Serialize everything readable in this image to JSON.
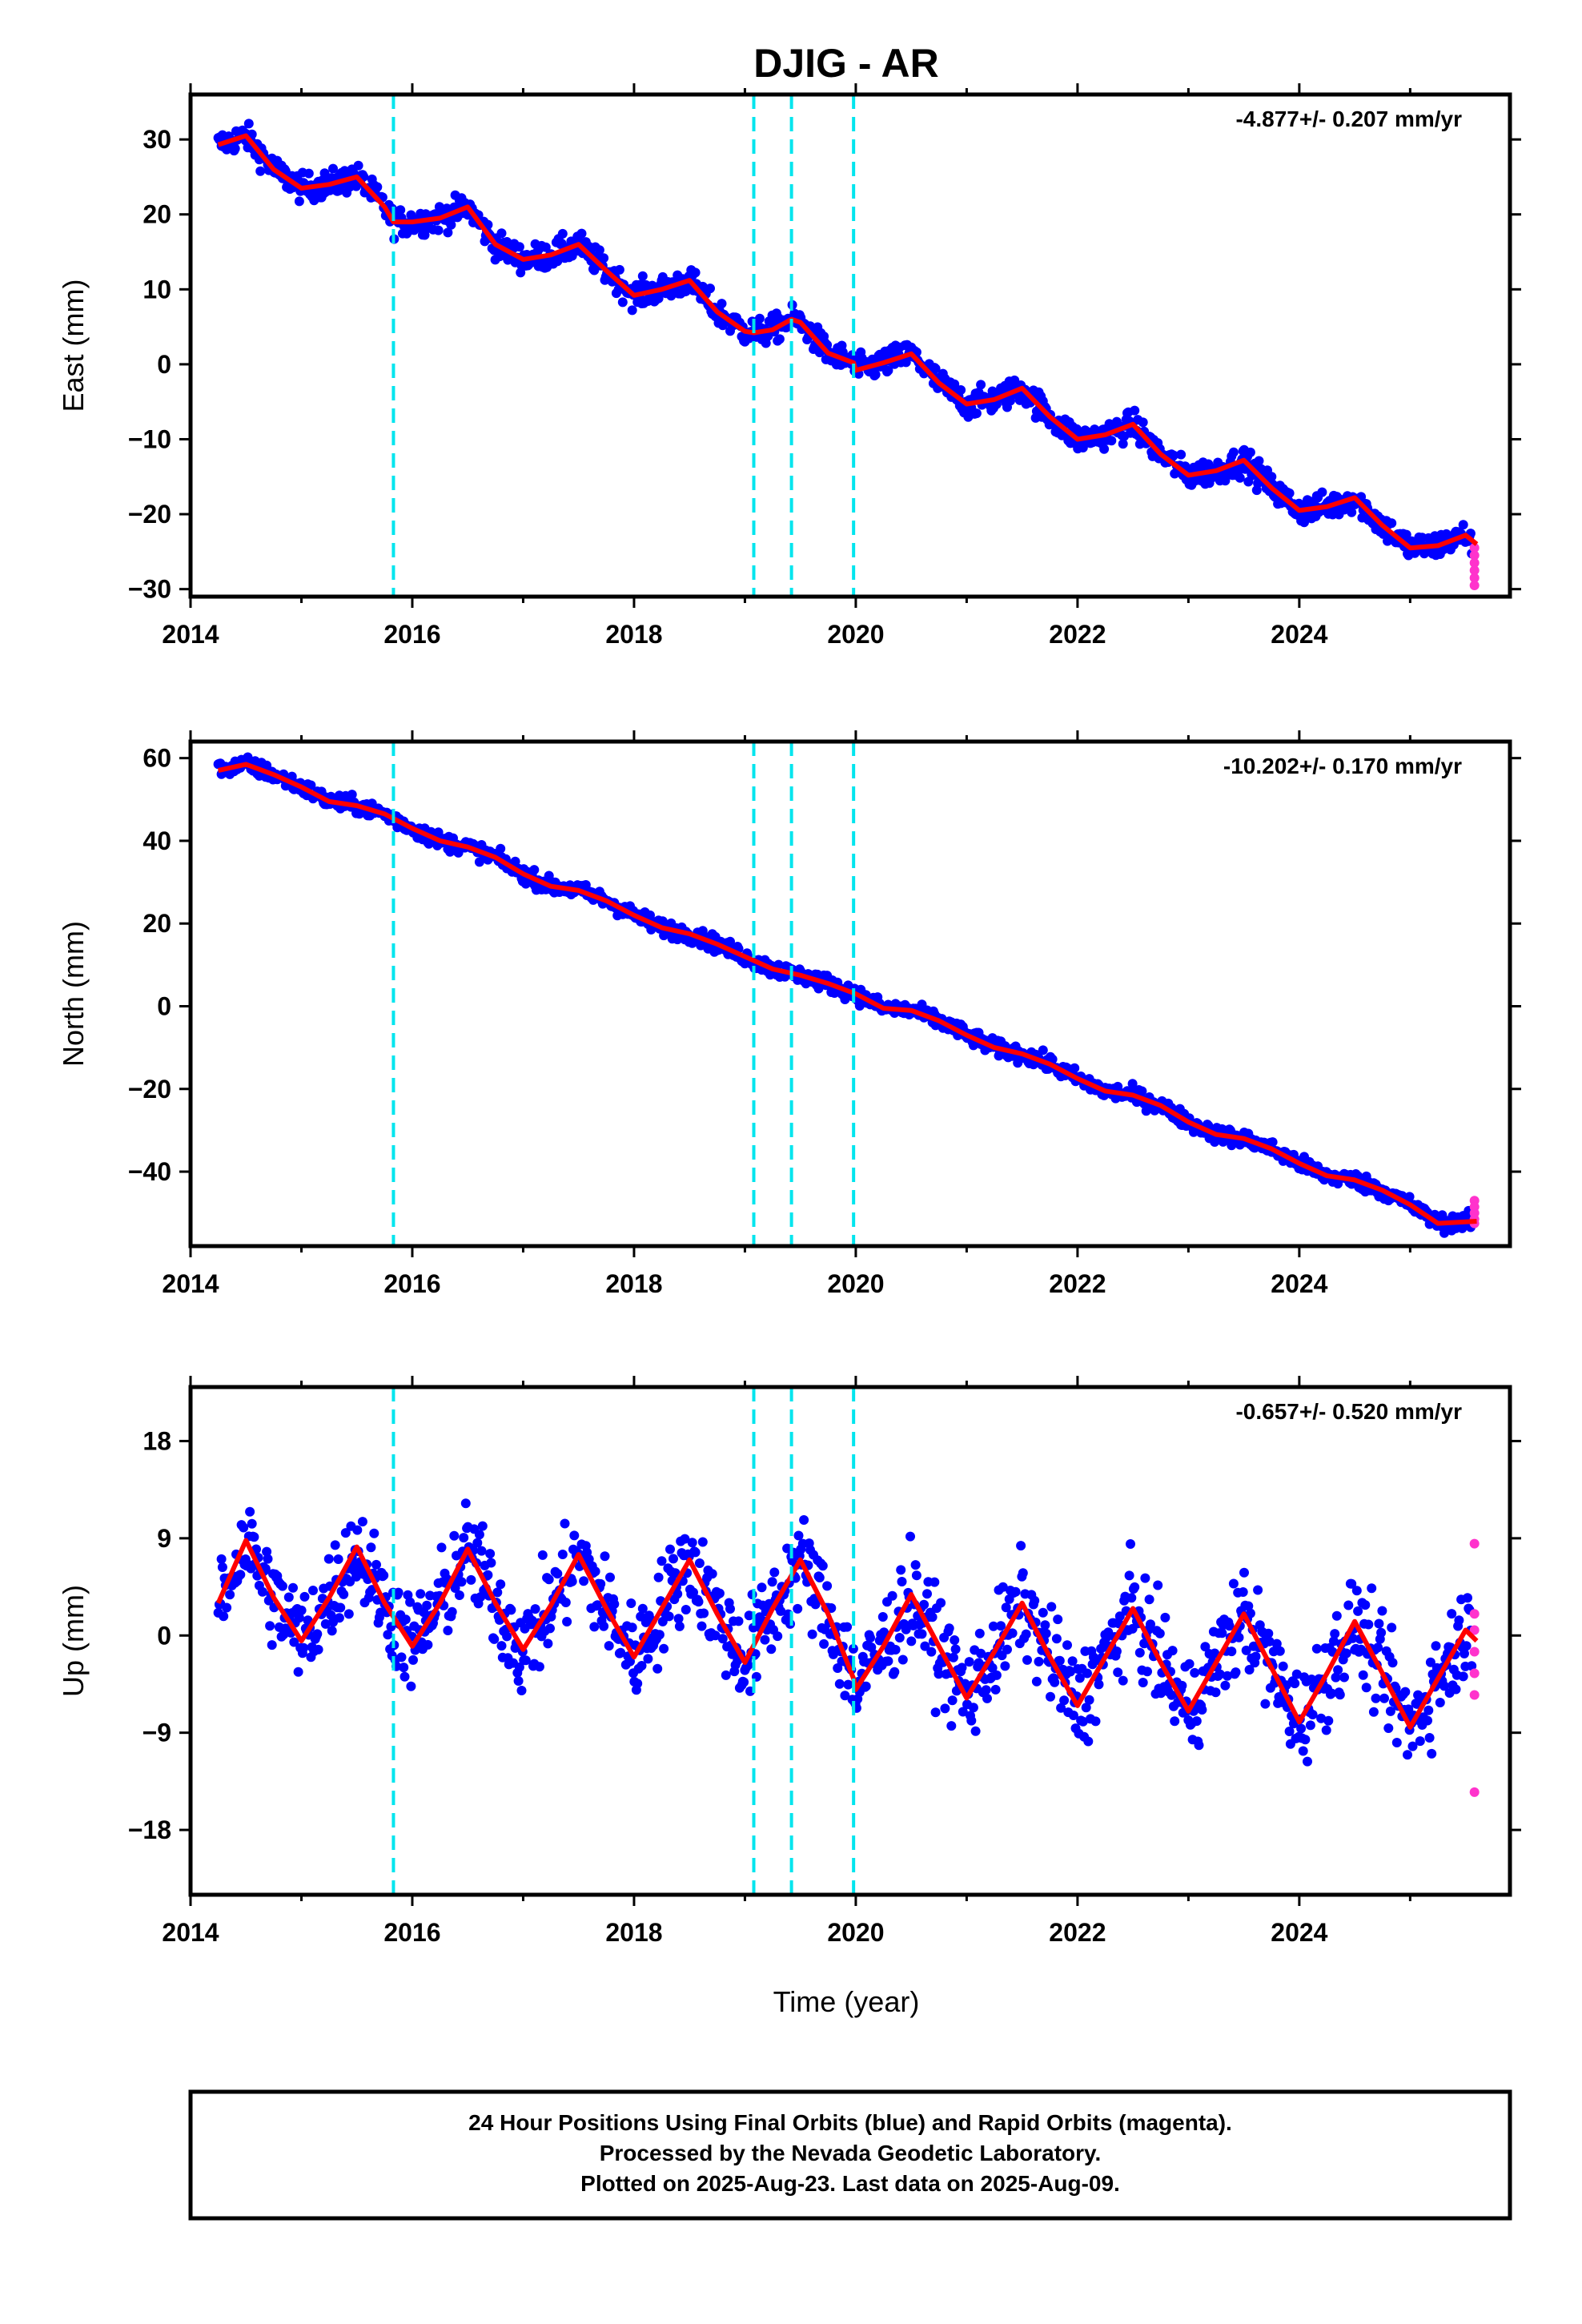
{
  "title": "DJIG - AR",
  "x_axis_label": "Time (year)",
  "footer": {
    "line1": "24 Hour Positions Using Final Orbits (blue) and Rapid Orbits (magenta).",
    "line2": "Processed by the Nevada Geodetic Laboratory.",
    "line3": "Plotted on 2025-Aug-23. Last data on 2025-Aug-09."
  },
  "colors": {
    "final": "#0000ff",
    "rapid": "#ff33cc",
    "model": "#ff0000",
    "events": "#00e5ee",
    "frame": "#000000"
  },
  "chart_data": [
    {
      "type": "scatter",
      "component": "east",
      "ylabel": "East (mm)",
      "rate_text": "-4.877+/- 0.207 mm/yr",
      "xlim": [
        2014,
        2025.9
      ],
      "ylim": [
        -31,
        36
      ],
      "xticks": [
        2014,
        2016,
        2018,
        2020,
        2022,
        2024
      ],
      "yticks": [
        -30,
        -20,
        -10,
        0,
        10,
        20,
        30
      ],
      "events": [
        2015.83,
        2019.08,
        2019.42,
        2019.98
      ],
      "model": {
        "x": [
          2014.25,
          2014.5,
          2014.75,
          2015.0,
          2015.25,
          2015.5,
          2015.75,
          2015.83,
          2016.0,
          2016.25,
          2016.5,
          2016.75,
          2017.0,
          2017.25,
          2017.5,
          2017.75,
          2018.0,
          2018.25,
          2018.5,
          2018.75,
          2019.0,
          2019.08,
          2019.25,
          2019.42,
          2019.5,
          2019.75,
          2019.98,
          2020.0,
          2020.25,
          2020.5,
          2020.75,
          2021.0,
          2021.25,
          2021.5,
          2021.75,
          2022.0,
          2022.25,
          2022.5,
          2022.75,
          2023.0,
          2023.25,
          2023.5,
          2023.75,
          2024.0,
          2024.25,
          2024.5,
          2024.75,
          2025.0,
          2025.25,
          2025.5,
          2025.6
        ],
        "y": [
          29.3,
          30.5,
          26.0,
          23.5,
          24.0,
          25.0,
          21.0,
          19.0,
          19.0,
          19.5,
          21.0,
          16.0,
          14.0,
          14.6,
          16.0,
          12.5,
          9.2,
          10.0,
          11.2,
          7.0,
          4.4,
          4.2,
          4.6,
          6.0,
          5.6,
          1.5,
          0.2,
          -0.8,
          0.2,
          1.4,
          -2.5,
          -5.3,
          -4.7,
          -3.2,
          -7.0,
          -10.0,
          -9.4,
          -8.0,
          -12.0,
          -14.8,
          -14.2,
          -12.8,
          -16.5,
          -19.5,
          -19.0,
          -17.8,
          -21.5,
          -24.5,
          -24.2,
          -22.8,
          -24.0
        ]
      },
      "scatter_noise": 1.3,
      "rapid": {
        "x": 2025.58,
        "y": [
          -24.5,
          -25.5,
          -26.5,
          -27.5,
          -28.5,
          -29.5
        ]
      }
    },
    {
      "type": "scatter",
      "component": "north",
      "ylabel": "North (mm)",
      "rate_text": "-10.202+/- 0.170 mm/yr",
      "xlim": [
        2014,
        2025.9
      ],
      "ylim": [
        -58,
        64
      ],
      "xticks": [
        2014,
        2016,
        2018,
        2020,
        2022,
        2024
      ],
      "yticks": [
        -40,
        -20,
        0,
        20,
        40,
        60
      ],
      "events": [
        2015.83,
        2019.08,
        2019.42,
        2019.98
      ],
      "model": {
        "x": [
          2014.25,
          2014.5,
          2014.75,
          2015.0,
          2015.25,
          2015.5,
          2015.75,
          2016.0,
          2016.25,
          2016.5,
          2016.75,
          2017.0,
          2017.25,
          2017.5,
          2017.75,
          2018.0,
          2018.25,
          2018.5,
          2018.75,
          2019.0,
          2019.25,
          2019.5,
          2019.75,
          2020.0,
          2020.25,
          2020.5,
          2020.75,
          2021.0,
          2021.25,
          2021.5,
          2021.75,
          2022.0,
          2022.25,
          2022.5,
          2022.75,
          2023.0,
          2023.25,
          2023.5,
          2023.75,
          2024.0,
          2024.25,
          2024.5,
          2024.75,
          2025.0,
          2025.25,
          2025.6
        ],
        "y": [
          57.0,
          58.5,
          56.0,
          53.0,
          49.5,
          48.5,
          46.5,
          43.0,
          40.0,
          38.5,
          36.0,
          32.0,
          29.0,
          28.0,
          25.5,
          22.0,
          19.0,
          17.5,
          15.0,
          12.0,
          9.0,
          7.5,
          5.5,
          3.0,
          -0.5,
          -1.0,
          -3.5,
          -7.0,
          -10.0,
          -11.5,
          -14.0,
          -17.5,
          -20.5,
          -21.5,
          -24.0,
          -28.0,
          -31.0,
          -32.0,
          -34.5,
          -38.0,
          -41.0,
          -42.0,
          -44.5,
          -48.0,
          -52.5,
          -52.0
        ]
      },
      "scatter_noise": 1.4,
      "rapid": {
        "x": 2025.58,
        "y": [
          -47.0,
          -48.5,
          -50.0,
          -51.5,
          -52.5
        ]
      }
    },
    {
      "type": "scatter",
      "component": "up",
      "ylabel": "Up (mm)",
      "rate_text": "-0.657+/- 0.520 mm/yr",
      "xlim": [
        2014,
        2025.9
      ],
      "ylim": [
        -24,
        23
      ],
      "xticks": [
        2014,
        2016,
        2018,
        2020,
        2022,
        2024
      ],
      "yticks": [
        -18,
        -9,
        0,
        9,
        18
      ],
      "events": [
        2015.83,
        2019.08,
        2019.42,
        2019.98
      ],
      "model": {
        "x": [
          2014.25,
          2014.5,
          2014.75,
          2015.0,
          2015.25,
          2015.5,
          2015.75,
          2016.0,
          2016.25,
          2016.5,
          2016.75,
          2017.0,
          2017.25,
          2017.5,
          2017.75,
          2018.0,
          2018.25,
          2018.5,
          2018.75,
          2019.0,
          2019.25,
          2019.5,
          2019.75,
          2019.98,
          2020.0,
          2020.25,
          2020.5,
          2020.75,
          2021.0,
          2021.25,
          2021.5,
          2021.75,
          2022.0,
          2022.25,
          2022.5,
          2022.75,
          2023.0,
          2023.25,
          2023.5,
          2023.75,
          2024.0,
          2024.25,
          2024.5,
          2024.75,
          2025.0,
          2025.25,
          2025.5,
          2025.6
        ],
        "y": [
          3.0,
          8.8,
          3.5,
          -0.5,
          3.5,
          8.2,
          3.0,
          -1.0,
          3.0,
          8.0,
          3.0,
          -1.3,
          2.8,
          7.5,
          2.5,
          -2.0,
          2.5,
          7.0,
          2.0,
          -2.5,
          2.5,
          7.0,
          2.0,
          -4.0,
          -5.0,
          -1.0,
          3.8,
          -1.0,
          -5.8,
          -1.5,
          3.0,
          -2.0,
          -6.5,
          -2.0,
          2.5,
          -2.5,
          -7.0,
          -2.5,
          2.0,
          -3.0,
          -8.0,
          -3.5,
          1.3,
          -3.5,
          -8.5,
          -4.0,
          0.5,
          -0.5
        ]
      },
      "scatter_noise": 3.2,
      "rapid": {
        "x": 2025.58,
        "y": [
          8.5,
          2.0,
          0.5,
          -1.5,
          -3.5,
          -5.5,
          -14.5
        ]
      }
    }
  ]
}
